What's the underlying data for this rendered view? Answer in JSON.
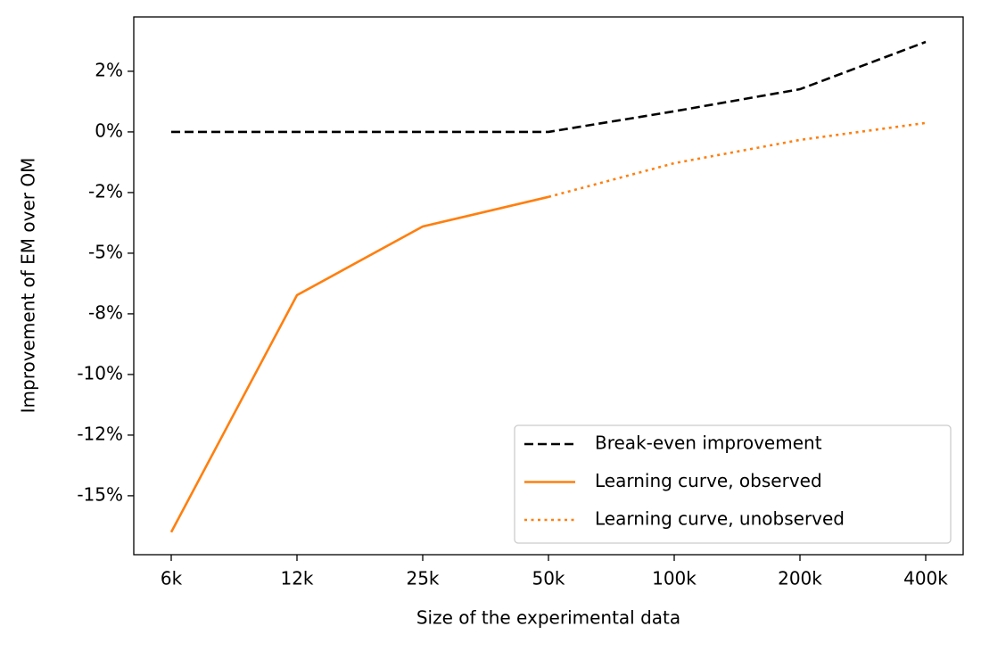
{
  "chart_data": {
    "type": "line",
    "xlabel": "Size of the experimental data",
    "ylabel": "Improvement of EM over OM",
    "categories": [
      "6k",
      "12k",
      "25k",
      "50k",
      "100k",
      "200k",
      "400k"
    ],
    "series": [
      {
        "name": "Break-even improvement",
        "color": "#000000",
        "style": "dashed",
        "values": [
          0,
          0,
          0,
          0,
          0.85,
          1.76,
          3.71
        ]
      },
      {
        "name": "Learning curve, observed",
        "color": "#ff7f0e",
        "style": "solid",
        "values": [
          -16.5,
          -6.73,
          -3.9,
          -2.68,
          null,
          null,
          null
        ]
      },
      {
        "name": "Learning curve, unobserved",
        "color": "#ff7f0e",
        "style": "dotted",
        "values": [
          null,
          null,
          null,
          -2.68,
          -1.29,
          -0.33,
          0.37
        ]
      }
    ],
    "ylim": [
      -17.43,
      4.74
    ],
    "yticks": [
      {
        "value": 2.5,
        "label": "2%"
      },
      {
        "value": 0,
        "label": "0%"
      },
      {
        "value": -2.5,
        "label": "-2%"
      },
      {
        "value": -5,
        "label": "-5%"
      },
      {
        "value": -7.5,
        "label": "-8%"
      },
      {
        "value": -10,
        "label": "-10%"
      },
      {
        "value": -12.5,
        "label": "-12%"
      },
      {
        "value": -15,
        "label": "-15%"
      }
    ],
    "legend": "lower right"
  }
}
